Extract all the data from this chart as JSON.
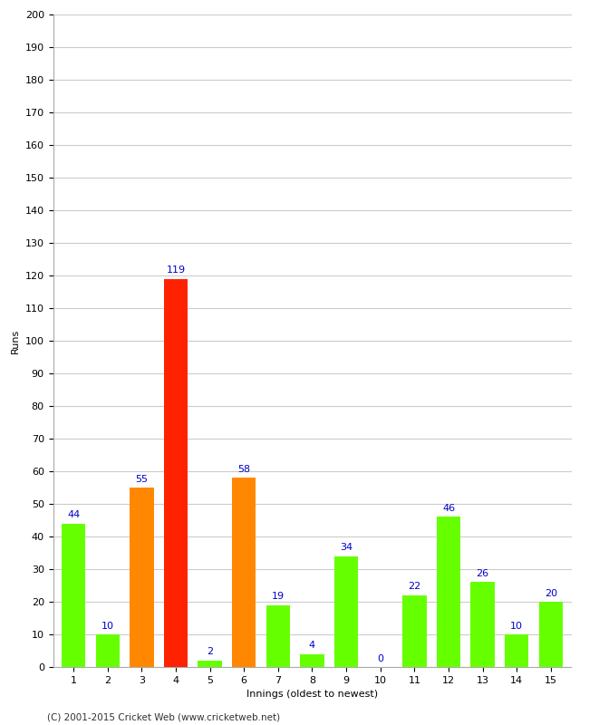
{
  "xlabel": "Innings (oldest to newest)",
  "ylabel": "Runs",
  "categories": [
    1,
    2,
    3,
    4,
    5,
    6,
    7,
    8,
    9,
    10,
    11,
    12,
    13,
    14,
    15
  ],
  "values": [
    44,
    10,
    55,
    119,
    2,
    58,
    19,
    4,
    34,
    0,
    22,
    46,
    26,
    10,
    20
  ],
  "bar_colors": [
    "#66ff00",
    "#66ff00",
    "#ff8800",
    "#ff2200",
    "#66ff00",
    "#ff8800",
    "#66ff00",
    "#66ff00",
    "#66ff00",
    "#66ff00",
    "#66ff00",
    "#66ff00",
    "#66ff00",
    "#66ff00",
    "#66ff00"
  ],
  "ylim": [
    0,
    200
  ],
  "yticks": [
    0,
    10,
    20,
    30,
    40,
    50,
    60,
    70,
    80,
    90,
    100,
    110,
    120,
    130,
    140,
    150,
    160,
    170,
    180,
    190,
    200
  ],
  "label_color": "#0000cc",
  "background_color": "#ffffff",
  "grid_color": "#cccccc",
  "footer": "(C) 2001-2015 Cricket Web (www.cricketweb.net)",
  "axis_label_fontsize": 8,
  "tick_fontsize": 8,
  "value_label_fontsize": 8,
  "bar_width": 0.7
}
